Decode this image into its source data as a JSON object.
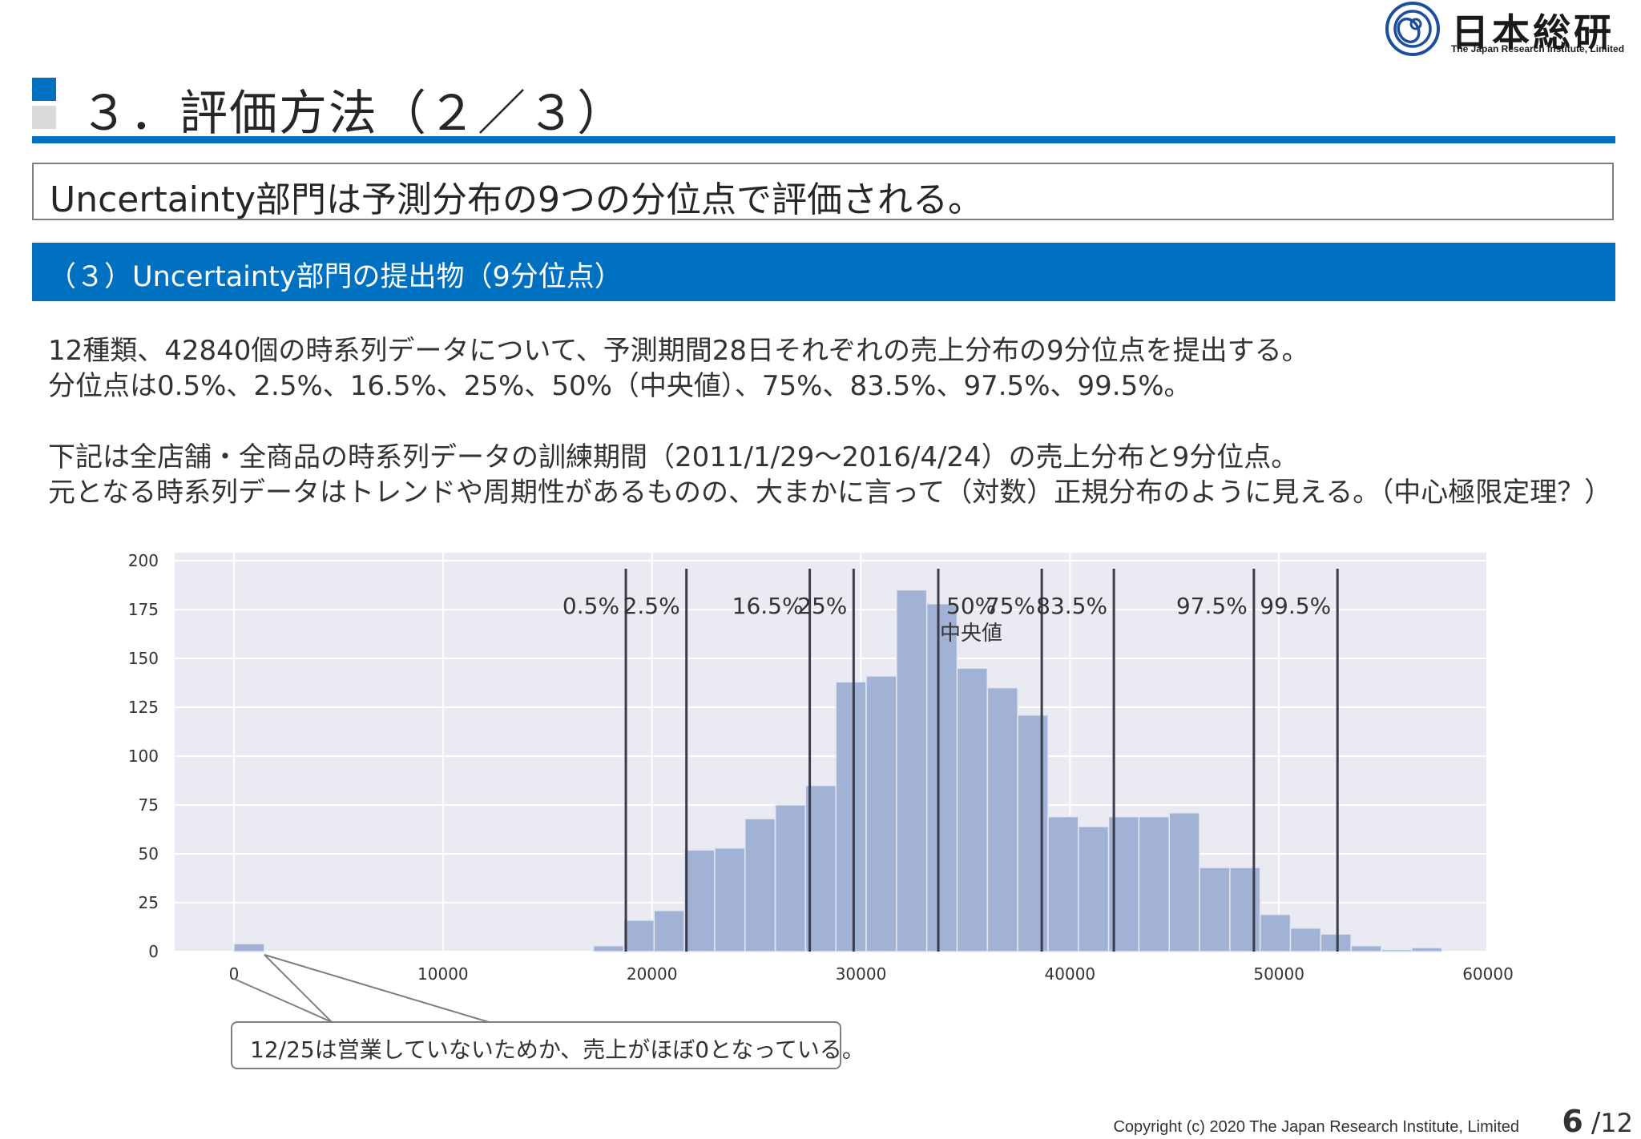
{
  "logo": {
    "name": "日本総研",
    "subtitle": "The Japan Research Institute, Limited"
  },
  "title": "３．評価方法（２／３）",
  "summary": "Uncertainty部門は予測分布の9つの分位点で評価される。",
  "section_header": "（３）Uncertainty部門の提出物（9分位点）",
  "paragraphs": [
    "12種類、42840個の時系列データについて、予測期間28日それぞれの売上分布の9分位点を提出する。",
    "分位点は0.5%、2.5%、16.5%、25%、50%（中央値）、75%、83.5%、97.5%、99.5%。",
    "下記は全店舗・全商品の時系列データの訓練期間（2011/1/29～2016/4/24）の売上分布と9分位点。",
    "元となる時系列データはトレンドや周期性があるものの、大まかに言って（対数）正規分布のように見える。（中心極限定理？）"
  ],
  "chart_data": {
    "type": "bar",
    "subtype": "histogram",
    "xlim": [
      -2800,
      60000
    ],
    "ylim": [
      0,
      200
    ],
    "x_ticks": [
      0,
      10000,
      20000,
      30000,
      40000,
      50000,
      60000
    ],
    "y_ticks": [
      0,
      25,
      50,
      75,
      100,
      125,
      150,
      175,
      200
    ],
    "grid": true,
    "bar_color": "#a1b2d4",
    "bins": [
      {
        "x0": 0,
        "x1": 1450,
        "count": 4
      },
      {
        "x0": 17200,
        "x1": 18650,
        "count": 3
      },
      {
        "x0": 18650,
        "x1": 20100,
        "count": 16
      },
      {
        "x0": 20100,
        "x1": 21550,
        "count": 21
      },
      {
        "x0": 21550,
        "x1": 23000,
        "count": 52
      },
      {
        "x0": 23000,
        "x1": 24450,
        "count": 53
      },
      {
        "x0": 24450,
        "x1": 25900,
        "count": 68
      },
      {
        "x0": 25900,
        "x1": 27350,
        "count": 75
      },
      {
        "x0": 27350,
        "x1": 28800,
        "count": 85
      },
      {
        "x0": 28800,
        "x1": 30250,
        "count": 138
      },
      {
        "x0": 30250,
        "x1": 31700,
        "count": 141
      },
      {
        "x0": 31700,
        "x1": 33150,
        "count": 185
      },
      {
        "x0": 33150,
        "x1": 34600,
        "count": 178
      },
      {
        "x0": 34600,
        "x1": 36050,
        "count": 145
      },
      {
        "x0": 36050,
        "x1": 37500,
        "count": 135
      },
      {
        "x0": 37500,
        "x1": 38950,
        "count": 121
      },
      {
        "x0": 38950,
        "x1": 40400,
        "count": 69
      },
      {
        "x0": 40400,
        "x1": 41850,
        "count": 64
      },
      {
        "x0": 41850,
        "x1": 43300,
        "count": 69
      },
      {
        "x0": 43300,
        "x1": 44750,
        "count": 69
      },
      {
        "x0": 44750,
        "x1": 46200,
        "count": 71
      },
      {
        "x0": 46200,
        "x1": 47650,
        "count": 43
      },
      {
        "x0": 47650,
        "x1": 49100,
        "count": 43
      },
      {
        "x0": 49100,
        "x1": 50550,
        "count": 19
      },
      {
        "x0": 50550,
        "x1": 52000,
        "count": 12
      },
      {
        "x0": 52000,
        "x1": 53450,
        "count": 9
      },
      {
        "x0": 53450,
        "x1": 54900,
        "count": 3
      },
      {
        "x0": 54900,
        "x1": 56350,
        "count": 1
      },
      {
        "x0": 56350,
        "x1": 57800,
        "count": 2
      }
    ],
    "quantiles": [
      {
        "label": "0.5%",
        "x": 18750
      },
      {
        "label": "2.5%",
        "x": 21650
      },
      {
        "label": "16.5%",
        "x": 27550
      },
      {
        "label": "25%",
        "x": 29650
      },
      {
        "label": "50%",
        "x": 33700,
        "sublabel": "中央値"
      },
      {
        "label": "75%",
        "x": 38650
      },
      {
        "label": "83.5%",
        "x": 42100
      },
      {
        "label": "97.5%",
        "x": 48800
      },
      {
        "label": "99.5%",
        "x": 52800
      }
    ]
  },
  "callout": "12/25は営業していないためか、売上がほぼ0となっている。",
  "footer": {
    "copyright": "Copyright (c) 2020 The Japan Research Institute, Limited",
    "page": "6",
    "page_sep": "/",
    "total": "12"
  }
}
